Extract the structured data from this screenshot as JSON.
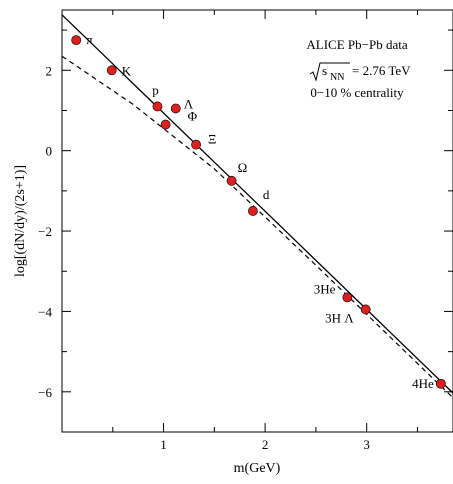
{
  "chart_data": {
    "type": "scatter",
    "xlabel": "m(GeV)",
    "ylabel": "log[(dN/dy)/(2s+1)]",
    "xlim": [
      0.0,
      3.85
    ],
    "ylim": [
      -7.0,
      3.5
    ],
    "x_ticks": [
      {
        "value": 1,
        "label": "1"
      },
      {
        "value": 2,
        "label": "2"
      },
      {
        "value": 3,
        "label": "3"
      }
    ],
    "y_ticks": [
      {
        "value": -6,
        "label": "−6"
      },
      {
        "value": -4,
        "label": "−4"
      },
      {
        "value": -2,
        "label": "−2"
      },
      {
        "value": 0,
        "label": "0"
      },
      {
        "value": 2,
        "label": "2"
      }
    ],
    "annotations": {
      "line1": "ALICE Pb−Pb data",
      "line2_sqrt": "s",
      "line2_sub": "NN",
      "line2_rest": "= 2.76 TeV",
      "line3": "0−10 % centrality"
    },
    "points": [
      {
        "label": "π",
        "x": 0.14,
        "y": 2.75
      },
      {
        "label": "K",
        "x": 0.49,
        "y": 2.0
      },
      {
        "label": "p",
        "x": 0.94,
        "y": 1.1
      },
      {
        "label": "Λ",
        "x": 1.12,
        "y": 1.05
      },
      {
        "label": "Φ",
        "x": 1.02,
        "y": 0.65
      },
      {
        "label": "Ξ",
        "x": 1.32,
        "y": 0.15
      },
      {
        "label": "Ω",
        "x": 1.67,
        "y": -0.75
      },
      {
        "label": "d",
        "x": 1.88,
        "y": -1.5
      },
      {
        "label": "3He",
        "x": 2.81,
        "y": -3.65
      },
      {
        "label": "3H Λ",
        "x": 2.99,
        "y": -3.95
      },
      {
        "label": "4He",
        "x": 3.73,
        "y": -5.8
      }
    ],
    "fit_solid": [
      [
        0.0,
        3.38
      ],
      [
        3.85,
        -6.03
      ]
    ],
    "fit_dashed": [
      [
        0.0,
        2.35
      ],
      [
        0.7,
        1.15
      ],
      [
        1.5,
        -0.45
      ],
      [
        2.5,
        -2.85
      ],
      [
        3.85,
        -6.15
      ]
    ],
    "colors": {
      "marker_fill": "#dd1f1f",
      "marker_stroke": "#000000",
      "line": "#000000"
    }
  }
}
